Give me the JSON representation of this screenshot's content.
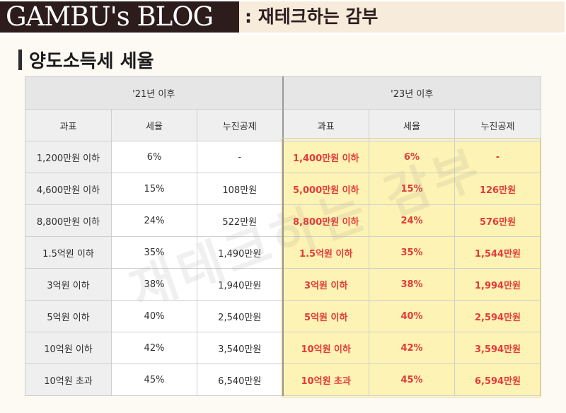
{
  "header": {
    "blog_name": "GAMBU's BLOG",
    "blog_tagline": ": 재테크하는 감부"
  },
  "section": {
    "title": "양도소득세 세율"
  },
  "table": {
    "periods": {
      "old": "'21년 이후",
      "new": "'23년 이후"
    },
    "columns": [
      "과표",
      "세율",
      "누진공제",
      "과표",
      "세율",
      "누진공제"
    ],
    "rows": [
      {
        "old_base": "1,200만원 이하",
        "old_rate": "6%",
        "old_deduction": "-",
        "new_base": "1,400만원 이하",
        "new_rate": "6%",
        "new_deduction": "-"
      },
      {
        "old_base": "4,600만원 이하",
        "old_rate": "15%",
        "old_deduction": "108만원",
        "new_base": "5,000만원 이하",
        "new_rate": "15%",
        "new_deduction": "126만원"
      },
      {
        "old_base": "8,800만원 이하",
        "old_rate": "24%",
        "old_deduction": "522만원",
        "new_base": "8,800만원 이하",
        "new_rate": "24%",
        "new_deduction": "576만원"
      },
      {
        "old_base": "1.5억원 이하",
        "old_rate": "35%",
        "old_deduction": "1,490만원",
        "new_base": "1.5억원 이하",
        "new_rate": "35%",
        "new_deduction": "1,544만원"
      },
      {
        "old_base": "3억원 이하",
        "old_rate": "38%",
        "old_deduction": "1,940만원",
        "new_base": "3억원 이하",
        "new_rate": "38%",
        "new_deduction": "1,994만원"
      },
      {
        "old_base": "5억원 이하",
        "old_rate": "40%",
        "old_deduction": "2,540만원",
        "new_base": "5억원 이하",
        "new_rate": "40%",
        "new_deduction": "2,594만원"
      },
      {
        "old_base": "10억원 이하",
        "old_rate": "42%",
        "old_deduction": "3,540만원",
        "new_base": "10억원 이하",
        "new_rate": "42%",
        "new_deduction": "3,594만원"
      },
      {
        "old_base": "10억원 초과",
        "old_rate": "45%",
        "old_deduction": "6,540만원",
        "new_base": "10억원 초과",
        "new_rate": "45%",
        "new_deduction": "6,594만원"
      }
    ]
  },
  "watermark": "재테크하는 감부",
  "colors": {
    "header_dark": "#2d1c1c",
    "header_light": "#f7ecdc",
    "highlight_bg": "#fdf3b4",
    "highlight_text": "#e43a3a"
  }
}
